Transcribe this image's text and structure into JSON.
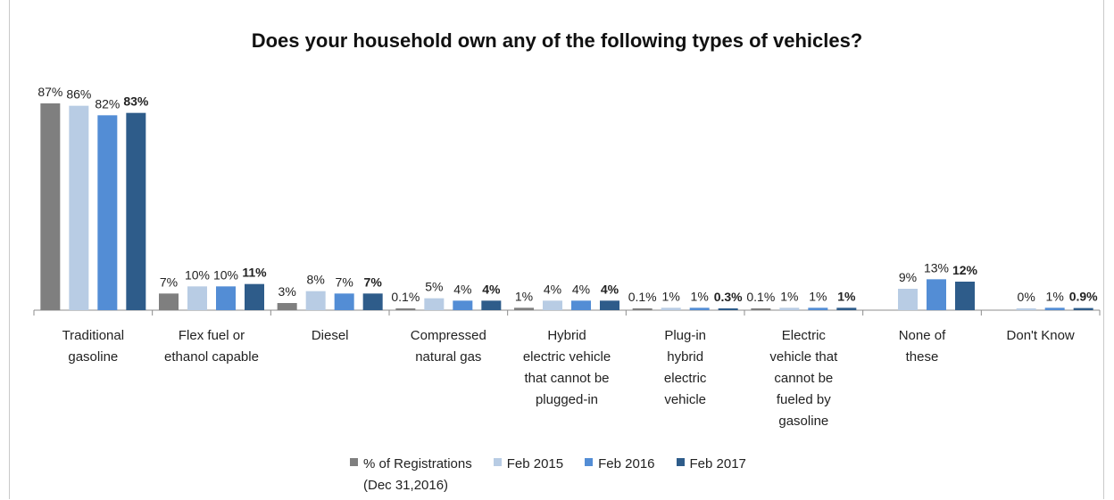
{
  "chart_data": {
    "type": "bar",
    "title": "Does your household own any of the following types of vehicles?",
    "categories": [
      "Traditional gasoline",
      "Flex fuel or ethanol capable",
      "Diesel",
      "Compressed natural gas",
      "Hybrid electric vehicle that cannot be plugged-in",
      "Plug-in hybrid electric vehicle",
      "Electric vehicle that cannot be fueled by gasoline",
      "None of these",
      "Don't Know"
    ],
    "series": [
      {
        "name": "% of Registrations (Dec 31,2016)",
        "values": [
          87,
          7,
          3,
          0.1,
          1,
          0.1,
          0.1,
          null,
          null
        ],
        "labels": [
          "87%",
          "7%",
          "3%",
          "0.1%",
          "1%",
          "0.1%",
          "0.1%",
          "",
          ""
        ],
        "color": "#7f7f7f",
        "bold_labels": false
      },
      {
        "name": "Feb 2015",
        "values": [
          86,
          10,
          8,
          5,
          4,
          1,
          1,
          9,
          0
        ],
        "labels": [
          "86%",
          "10%",
          "8%",
          "5%",
          "4%",
          "1%",
          "1%",
          "9%",
          "0%"
        ],
        "color": "#b8cce4",
        "bold_labels": false
      },
      {
        "name": "Feb 2016",
        "values": [
          82,
          10,
          7,
          4,
          4,
          1,
          1,
          13,
          1
        ],
        "labels": [
          "82%",
          "10%",
          "7%",
          "4%",
          "4%",
          "1%",
          "1%",
          "13%",
          "1%"
        ],
        "color": "#538dd5",
        "bold_labels": false
      },
      {
        "name": "Feb 2017",
        "values": [
          83,
          11,
          7,
          4,
          4,
          0.3,
          1,
          12,
          0.9
        ],
        "labels": [
          "83%",
          "11%",
          "7%",
          "4%",
          "4%",
          "0.3%",
          "1%",
          "12%",
          "0.9%"
        ],
        "color": "#2e5c8a",
        "bold_labels": true
      }
    ],
    "ylim": [
      0,
      87
    ],
    "grid": false,
    "legend_position": "bottom"
  },
  "legend": [
    {
      "label_lines": [
        "% of Registrations",
        "(Dec 31,2016)"
      ],
      "color": "#7f7f7f"
    },
    {
      "label_lines": [
        "Feb 2015"
      ],
      "color": "#b8cce4"
    },
    {
      "label_lines": [
        "Feb 2016"
      ],
      "color": "#538dd5"
    },
    {
      "label_lines": [
        "Feb 2017"
      ],
      "color": "#2e5c8a"
    }
  ]
}
